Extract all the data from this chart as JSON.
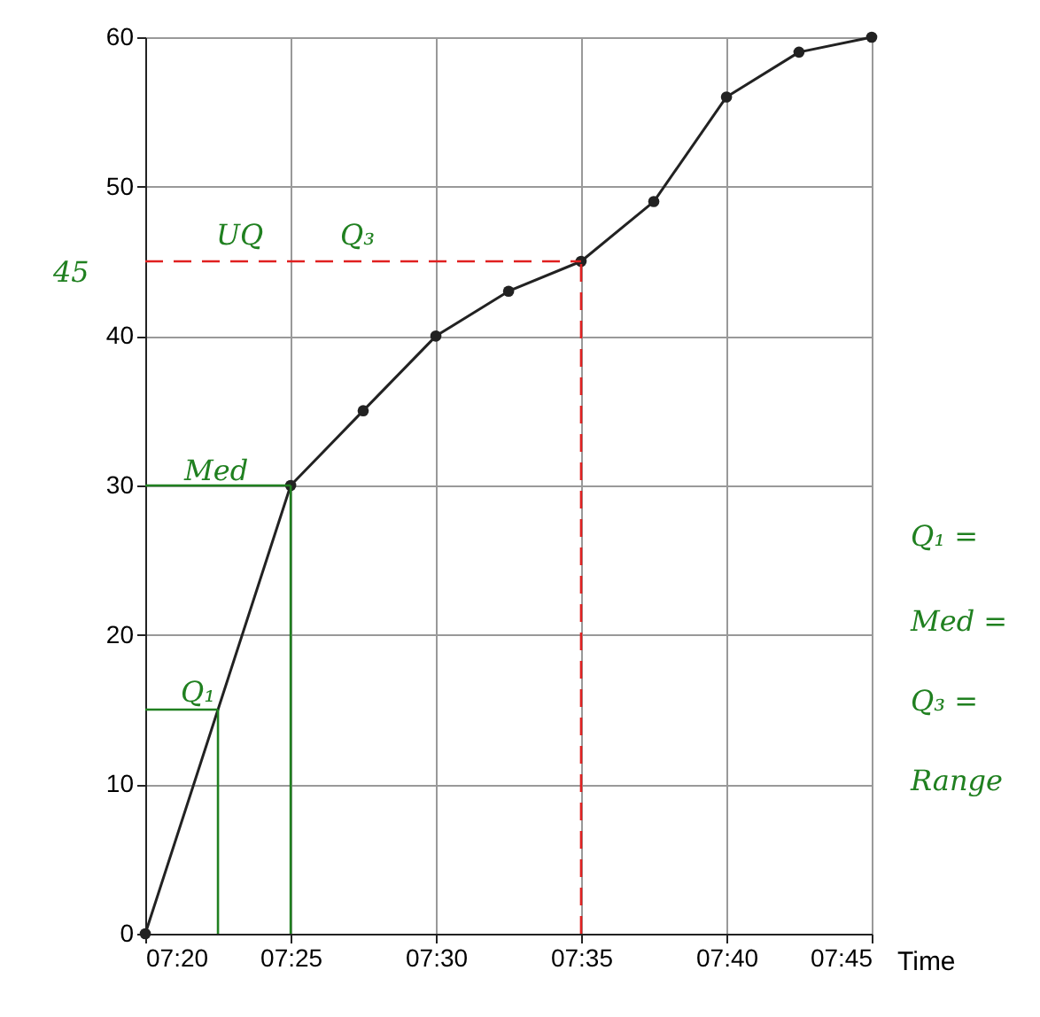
{
  "chart_data": {
    "type": "line",
    "xlabel": "Time",
    "x": [
      7.3333,
      7.4167,
      7.4583,
      7.5,
      7.5417,
      7.5833,
      7.625,
      7.6667,
      7.7083,
      7.75
    ],
    "series": [
      {
        "color": "#222222",
        "values": [
          0,
          30,
          35,
          40,
          43,
          45,
          49,
          56,
          59,
          60
        ]
      }
    ],
    "xlim": [
      7.3333,
      7.75
    ],
    "xticks": [
      {
        "value": 7.3333,
        "label": "07:20"
      },
      {
        "value": 7.4167,
        "label": "07:25"
      },
      {
        "value": 7.5,
        "label": "07:30"
      },
      {
        "value": 7.5833,
        "label": "07:35"
      },
      {
        "value": 7.6667,
        "label": "07:40"
      },
      {
        "value": 7.75,
        "label": "07:45"
      }
    ],
    "ylim": [
      0,
      60
    ],
    "yticks": [
      0,
      10,
      20,
      30,
      40,
      50,
      60
    ],
    "grid": true,
    "marker": "circle",
    "line_style": "solid",
    "ref_lines": [
      {
        "axis": "y",
        "value": 45,
        "color": "#e02020",
        "line_style": "dashed"
      },
      {
        "axis": "x",
        "value": 7.5833,
        "color": "#e02020",
        "line_style": "dashed"
      },
      {
        "axis": "y",
        "value": 30,
        "color": "#208020",
        "line_style": "solid"
      },
      {
        "axis": "x",
        "value": 7.4167,
        "color": "#208020",
        "line_style": "solid"
      },
      {
        "axis": "y",
        "value": 15,
        "color": "#208020",
        "line_style": "solid"
      },
      {
        "axis": "x",
        "value": 7.375,
        "color": "#208020",
        "line_style": "solid"
      }
    ],
    "annotations": [
      "45",
      "UQ",
      "Q₃",
      "Med",
      "Q₁",
      "Q₁ =",
      "Med =",
      "Q₃ =",
      "Range"
    ]
  }
}
